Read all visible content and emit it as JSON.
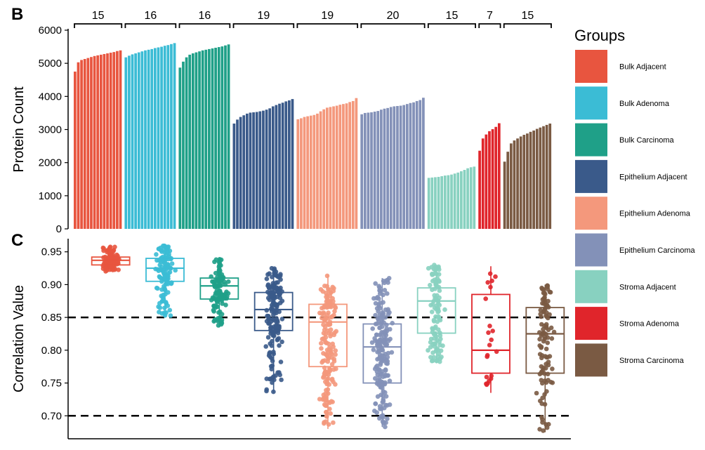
{
  "legend": {
    "title": "Groups",
    "entries": [
      {
        "name": "Bulk Adjacent",
        "color": "#E8553F"
      },
      {
        "name": "Bulk Adenoma",
        "color": "#3BBCD5"
      },
      {
        "name": "Bulk Carcinoma",
        "color": "#1FA088"
      },
      {
        "name": "Epithelium Adjacent",
        "color": "#3A5A8A"
      },
      {
        "name": "Epithelium Adenoma",
        "color": "#F4987C"
      },
      {
        "name": "Epithelium Carcinoma",
        "color": "#8391B8"
      },
      {
        "name": "Stroma Adjacent",
        "color": "#88D1C0"
      },
      {
        "name": "Stroma Adenoma",
        "color": "#E0252B"
      },
      {
        "name": "Stroma Carcinoma",
        "color": "#7A5A43"
      }
    ]
  },
  "chart_data": [
    {
      "panel": "B",
      "type": "bar",
      "ylabel": "Protein Count",
      "ylim": [
        0,
        6000
      ],
      "yticks": [
        0,
        1000,
        2000,
        3000,
        4000,
        5000,
        6000
      ],
      "groups": [
        {
          "name": "Bulk Adjacent",
          "count_label": "15",
          "values": [
            4750,
            5030,
            5100,
            5130,
            5160,
            5190,
            5220,
            5240,
            5260,
            5280,
            5300,
            5320,
            5340,
            5370,
            5390
          ]
        },
        {
          "name": "Bulk Adenoma",
          "count_label": "16",
          "values": [
            5180,
            5230,
            5270,
            5300,
            5330,
            5360,
            5390,
            5410,
            5430,
            5460,
            5480,
            5500,
            5530,
            5550,
            5580,
            5610
          ]
        },
        {
          "name": "Bulk Carcinoma",
          "count_label": "16",
          "values": [
            4870,
            5050,
            5180,
            5260,
            5300,
            5330,
            5360,
            5390,
            5410,
            5430,
            5450,
            5470,
            5490,
            5510,
            5540,
            5570
          ]
        },
        {
          "name": "Epithelium Adjacent",
          "count_label": "19",
          "values": [
            3180,
            3300,
            3380,
            3430,
            3480,
            3510,
            3520,
            3530,
            3550,
            3570,
            3600,
            3640,
            3700,
            3740,
            3780,
            3810,
            3850,
            3880,
            3920
          ]
        },
        {
          "name": "Epithelium Adenoma",
          "count_label": "19",
          "values": [
            3310,
            3340,
            3380,
            3400,
            3420,
            3440,
            3480,
            3550,
            3610,
            3660,
            3680,
            3700,
            3720,
            3750,
            3770,
            3790,
            3830,
            3860,
            3950
          ]
        },
        {
          "name": "Epithelium Carcinoma",
          "count_label": "20",
          "values": [
            3460,
            3500,
            3510,
            3520,
            3540,
            3560,
            3600,
            3630,
            3650,
            3680,
            3700,
            3710,
            3720,
            3740,
            3770,
            3800,
            3820,
            3860,
            3890,
            3960
          ]
        },
        {
          "name": "Stroma Adjacent",
          "count_label": "15",
          "values": [
            1540,
            1550,
            1560,
            1570,
            1590,
            1610,
            1620,
            1640,
            1670,
            1700,
            1740,
            1780,
            1830,
            1860,
            1880
          ]
        },
        {
          "name": "Stroma Adenoma",
          "count_label": "7",
          "values": [
            2360,
            2730,
            2850,
            2950,
            3010,
            3080,
            3190
          ]
        },
        {
          "name": "Stroma Carcinoma",
          "count_label": "15",
          "values": [
            2030,
            2330,
            2580,
            2670,
            2730,
            2790,
            2840,
            2880,
            2930,
            2970,
            3020,
            3060,
            3100,
            3140,
            3180
          ]
        }
      ]
    },
    {
      "panel": "C",
      "type": "box",
      "ylabel": "Correlation Value",
      "ylim": [
        0.665,
        0.97
      ],
      "yticks": [
        0.7,
        0.75,
        0.8,
        0.85,
        0.9,
        0.95
      ],
      "reference_lines": [
        0.85,
        0.7
      ],
      "groups": [
        {
          "name": "Bulk Adjacent",
          "min": 0.92,
          "q1": 0.93,
          "median": 0.937,
          "q3": 0.942,
          "max": 0.958,
          "n_points": 105
        },
        {
          "name": "Bulk Adenoma",
          "min": 0.85,
          "q1": 0.905,
          "median": 0.925,
          "q3": 0.94,
          "max": 0.96,
          "n_points": 120
        },
        {
          "name": "Bulk Carcinoma",
          "min": 0.835,
          "q1": 0.878,
          "median": 0.898,
          "q3": 0.91,
          "max": 0.94,
          "n_points": 120
        },
        {
          "name": "Epithelium Adjacent",
          "min": 0.735,
          "q1": 0.83,
          "median": 0.862,
          "q3": 0.888,
          "max": 0.925,
          "n_points": 171
        },
        {
          "name": "Epithelium Adenoma",
          "min": 0.68,
          "q1": 0.775,
          "median": 0.843,
          "q3": 0.87,
          "max": 0.915,
          "n_points": 171
        },
        {
          "name": "Epithelium Carcinoma",
          "min": 0.683,
          "q1": 0.75,
          "median": 0.805,
          "q3": 0.84,
          "max": 0.91,
          "n_points": 190
        },
        {
          "name": "Stroma Adjacent",
          "min": 0.78,
          "q1": 0.826,
          "median": 0.875,
          "q3": 0.895,
          "max": 0.93,
          "n_points": 105
        },
        {
          "name": "Stroma Adenoma",
          "min": 0.735,
          "q1": 0.765,
          "median": 0.8,
          "q3": 0.885,
          "max": 0.928,
          "n_points": 21
        },
        {
          "name": "Stroma Carcinoma",
          "min": 0.675,
          "q1": 0.765,
          "median": 0.825,
          "q3": 0.865,
          "max": 0.9,
          "n_points": 105
        }
      ]
    }
  ],
  "labels": {
    "panelB": "B",
    "panelC": "C"
  }
}
